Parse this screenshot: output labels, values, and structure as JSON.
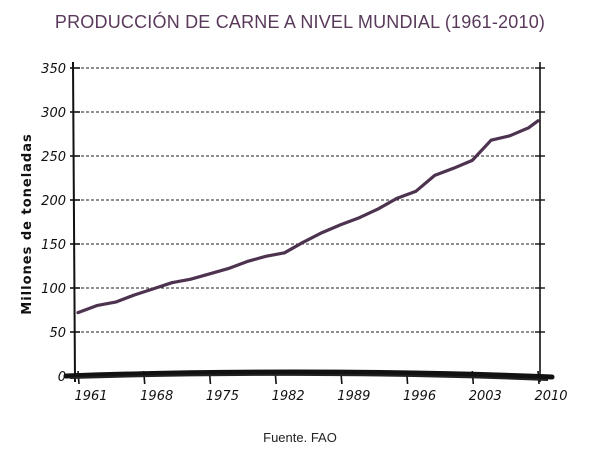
{
  "chart_data": {
    "type": "line",
    "title": "PRODUCCIÓN DE CARNE A NIVEL MUNDIAL (1961-2010)",
    "ylabel": "Millones de toneladas",
    "xlabel": "",
    "source": "Fuente. FAO",
    "ylim": [
      0,
      350
    ],
    "xlim": [
      1961,
      2010
    ],
    "yticks": [
      0,
      50,
      100,
      150,
      200,
      250,
      300,
      350
    ],
    "xticks": [
      1961,
      1968,
      1975,
      1982,
      1989,
      1996,
      2003,
      2010
    ],
    "grid": true,
    "series": [
      {
        "name": "Producción de carne",
        "color": "#4e3350",
        "x": [
          1961,
          1963,
          1965,
          1967,
          1969,
          1971,
          1973,
          1975,
          1977,
          1979,
          1981,
          1983,
          1985,
          1987,
          1989,
          1991,
          1993,
          1995,
          1997,
          1999,
          2001,
          2003,
          2005,
          2007,
          2009,
          2010
        ],
        "y": [
          72,
          80,
          84,
          92,
          99,
          106,
          110,
          116,
          122,
          130,
          136,
          140,
          152,
          163,
          172,
          180,
          190,
          202,
          210,
          228,
          236,
          245,
          268,
          273,
          282,
          290
        ]
      }
    ]
  }
}
